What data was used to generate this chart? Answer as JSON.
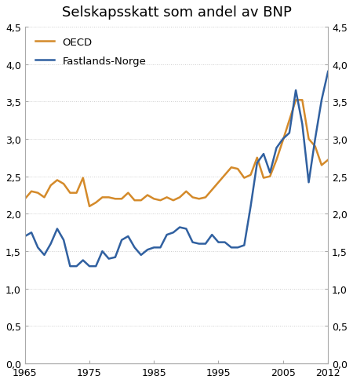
{
  "title": "Selskapsskatt som andel av BNP",
  "oecd_color": "#d48a2a",
  "norway_color": "#3060a0",
  "line_width": 1.8,
  "ylim": [
    0.0,
    4.5
  ],
  "yticks": [
    0.0,
    0.5,
    1.0,
    1.5,
    2.0,
    2.5,
    3.0,
    3.5,
    4.0,
    4.5
  ],
  "ytick_labels": [
    "0,0",
    "0,5",
    "1,0",
    "1,5",
    "2,0",
    "2,5",
    "3,0",
    "3,5",
    "4,0",
    "4,5"
  ],
  "xticks": [
    1965,
    1975,
    1985,
    1995,
    2005,
    2012
  ],
  "years": [
    1965,
    1966,
    1967,
    1968,
    1969,
    1970,
    1971,
    1972,
    1973,
    1974,
    1975,
    1976,
    1977,
    1978,
    1979,
    1980,
    1981,
    1982,
    1983,
    1984,
    1985,
    1986,
    1987,
    1988,
    1989,
    1990,
    1991,
    1992,
    1993,
    1994,
    1995,
    1996,
    1997,
    1998,
    1999,
    2000,
    2001,
    2002,
    2003,
    2004,
    2005,
    2006,
    2007,
    2008,
    2009,
    2010,
    2011,
    2012
  ],
  "oecd": [
    2.2,
    2.3,
    2.28,
    2.22,
    2.38,
    2.45,
    2.4,
    2.28,
    2.28,
    2.48,
    2.1,
    2.15,
    2.22,
    2.22,
    2.2,
    2.2,
    2.28,
    2.18,
    2.18,
    2.25,
    2.2,
    2.18,
    2.22,
    2.18,
    2.22,
    2.3,
    2.22,
    2.2,
    2.22,
    2.32,
    2.42,
    2.52,
    2.62,
    2.6,
    2.48,
    2.52,
    2.75,
    2.48,
    2.5,
    2.72,
    2.98,
    3.25,
    3.52,
    3.52,
    3.0,
    2.9,
    2.65,
    2.72
  ],
  "norway": [
    1.7,
    1.75,
    1.55,
    1.45,
    1.6,
    1.8,
    1.65,
    1.3,
    1.3,
    1.38,
    1.3,
    1.3,
    1.5,
    1.4,
    1.42,
    1.65,
    1.7,
    1.55,
    1.45,
    1.52,
    1.55,
    1.55,
    1.72,
    1.75,
    1.82,
    1.8,
    1.62,
    1.6,
    1.6,
    1.72,
    1.62,
    1.62,
    1.55,
    1.55,
    1.58,
    2.1,
    2.68,
    2.8,
    2.55,
    2.88,
    3.0,
    3.08,
    3.65,
    3.2,
    2.42,
    3.0,
    3.52,
    3.9
  ],
  "legend_oecd": "OECD",
  "legend_norway": "Fastlands-Norge",
  "bg_color": "#ffffff"
}
